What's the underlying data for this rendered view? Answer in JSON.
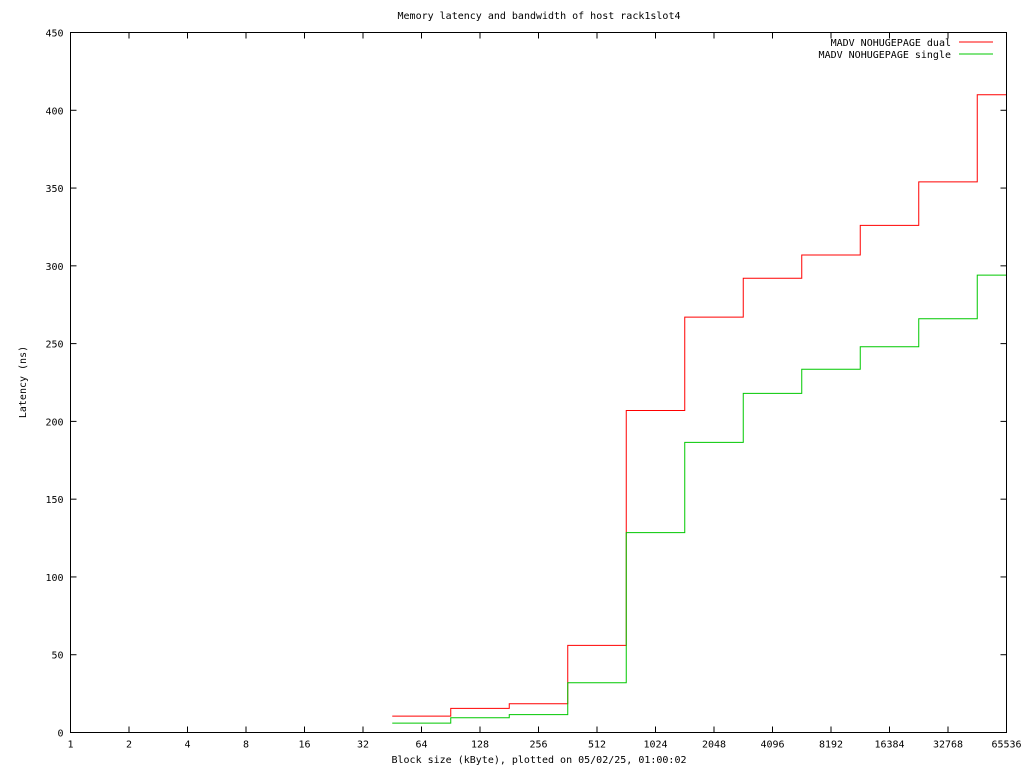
{
  "chart_data": {
    "type": "line",
    "title": "Memory latency and bandwidth of host rack1slot4",
    "xlabel": "Block size (kByte), plotted on 05/02/25, 01:00:02",
    "ylabel": "Latency (ns)",
    "x_scale": "log2",
    "xlim": [
      1,
      65536
    ],
    "ylim": [
      0,
      450
    ],
    "x_ticks": [
      1,
      2,
      4,
      8,
      16,
      32,
      64,
      128,
      256,
      512,
      1024,
      2048,
      4096,
      8192,
      16384,
      32768,
      65536
    ],
    "y_ticks": [
      0,
      50,
      100,
      150,
      200,
      250,
      300,
      350,
      400,
      450
    ],
    "grid": false,
    "legend_position": "top-right",
    "step_style": "histeps",
    "x": [
      64,
      128,
      256,
      512,
      1024,
      2048,
      4096,
      8192,
      16384,
      32768,
      65536
    ],
    "series": [
      {
        "name": "MADV NOHUGEPAGE dual",
        "color": "#ff0000",
        "values": [
          10.5,
          15.5,
          18.5,
          56,
          207,
          267,
          292,
          307,
          326,
          354,
          410
        ]
      },
      {
        "name": "MADV NOHUGEPAGE single",
        "color": "#00c800",
        "values": [
          6,
          9.5,
          11.5,
          32,
          128.5,
          186.5,
          218,
          233.5,
          248,
          266,
          294
        ]
      }
    ]
  }
}
